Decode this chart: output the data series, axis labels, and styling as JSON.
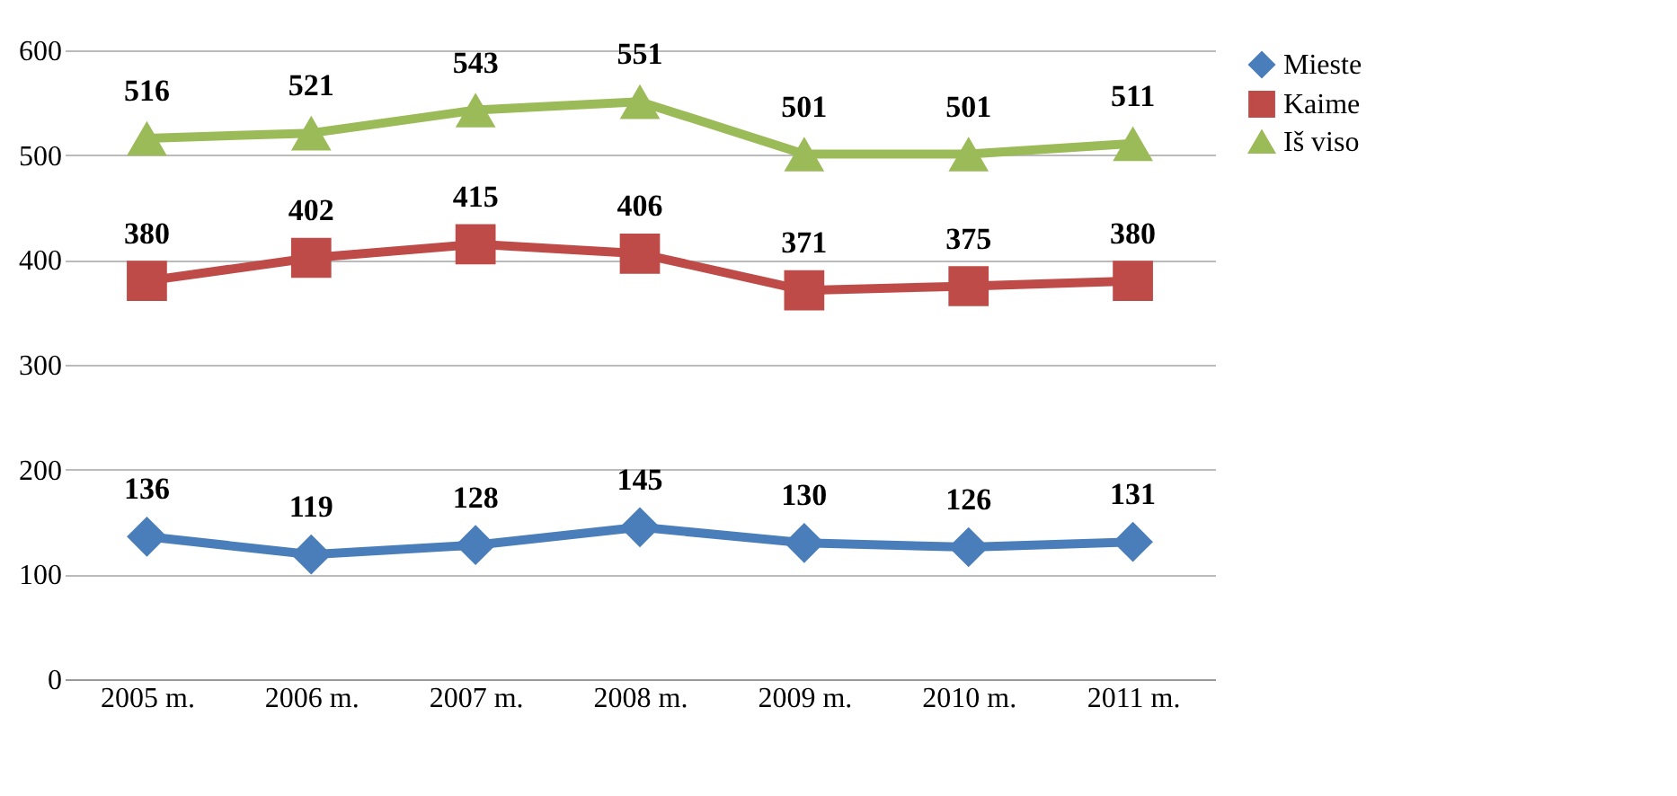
{
  "chart_data": {
    "type": "line",
    "categories": [
      "2005 m.",
      "2006 m.",
      "2007 m.",
      "2008 m.",
      "2009 m.",
      "2010 m.",
      "2011 m."
    ],
    "series": [
      {
        "name": "Mieste",
        "color": "#4a7ebb",
        "marker": "diamond",
        "values": [
          136,
          119,
          128,
          145,
          130,
          126,
          131
        ]
      },
      {
        "name": "Kaime",
        "color": "#be4b48",
        "marker": "square",
        "values": [
          380,
          402,
          415,
          406,
          371,
          375,
          380
        ]
      },
      {
        "name": "Iš viso",
        "color": "#9bbb59",
        "marker": "triangle",
        "values": [
          516,
          521,
          543,
          551,
          501,
          501,
          511
        ]
      }
    ],
    "ylim": [
      0,
      600
    ],
    "yticks": [
      0,
      100,
      200,
      300,
      400,
      500,
      600
    ],
    "grid": "y",
    "legend": "right",
    "data_labels": true,
    "line_style": "solid"
  }
}
